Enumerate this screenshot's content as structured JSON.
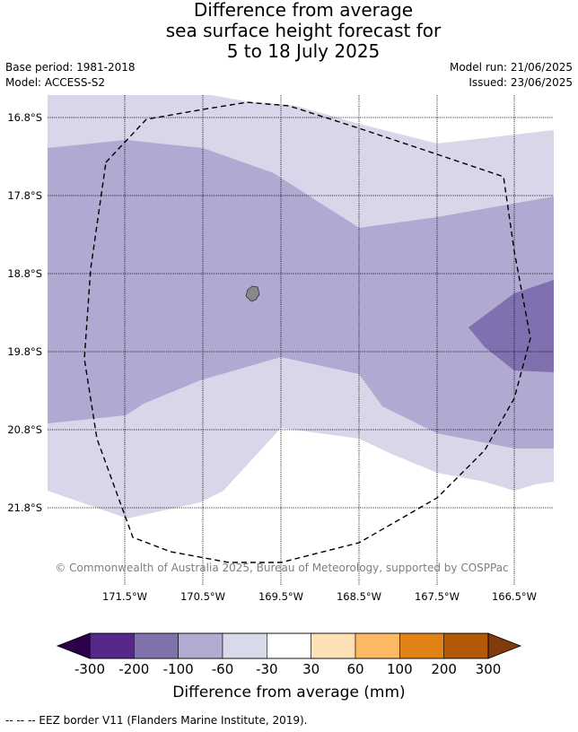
{
  "title": {
    "line1": "Difference from average",
    "line2": "sea surface height forecast for",
    "line3": "5 to 18 July 2025"
  },
  "meta": {
    "base_period": "Base period: 1981-2018",
    "model": "Model: ACCESS-S2",
    "model_run": "Model run: 21/06/2025",
    "issued": "Issued: 23/06/2025"
  },
  "map": {
    "lat_labels": [
      "16.8°S",
      "17.8°S",
      "18.8°S",
      "19.8°S",
      "20.8°S",
      "21.8°S"
    ],
    "lon_labels": [
      "171.5°W",
      "170.5°W",
      "169.5°W",
      "168.5°W",
      "167.5°W",
      "166.5°W"
    ],
    "copyright": "© Commonwealth of Australia 2025, Bureau of Meteorology, supported by COSPPac",
    "colors": {
      "band_minus_200_to_minus_100": "#8070b0",
      "band_minus_100_to_minus_60": "#b0aad2",
      "band_minus_60_to_minus_30": "#d7d7e9",
      "band_minus_30_to_30": "#ffffff",
      "island": "#888888",
      "grid": "#000000"
    }
  },
  "colorbar": {
    "ticks": [
      "-300",
      "-200",
      "-100",
      "-60",
      "-30",
      "30",
      "60",
      "100",
      "200",
      "300"
    ],
    "colors": [
      "#2d004b",
      "#542788",
      "#8073ac",
      "#b2abd2",
      "#d8daeb",
      "#ffffff",
      "#fee0b6",
      "#fdb863",
      "#e08214",
      "#b35806",
      "#7f3b08"
    ],
    "label": "Difference from average (mm)"
  },
  "footer": "--  --  -- EEZ border V11 (Flanders Marine Institute, 2019)."
}
